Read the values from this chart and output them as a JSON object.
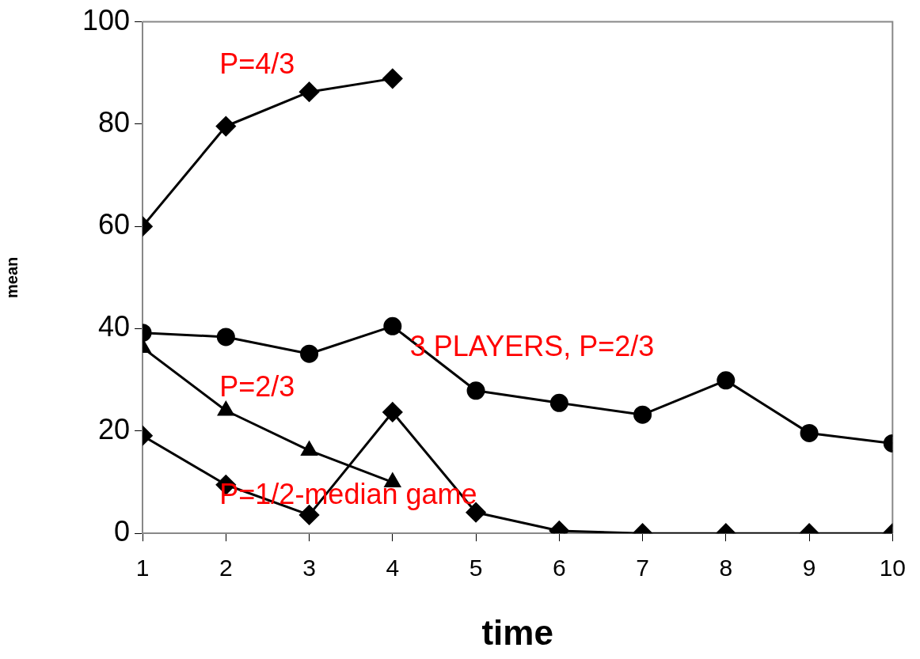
{
  "chart_data": {
    "type": "line",
    "xlabel": "time",
    "ylabel": "mean",
    "x": [
      1,
      2,
      3,
      4,
      5,
      6,
      7,
      8,
      9,
      10
    ],
    "xlim": [
      1,
      10
    ],
    "xticks": [
      1,
      2,
      3,
      4,
      5,
      6,
      7,
      8,
      9,
      10
    ],
    "ylim": [
      0,
      100
    ],
    "yticks": [
      0,
      20,
      40,
      60,
      80,
      100
    ],
    "grid": false,
    "legend": false,
    "series": [
      {
        "name": "P=4/3",
        "color": "#000000",
        "marker": "diamond",
        "values": [
          60,
          79.6,
          86.3,
          88.9,
          null,
          null,
          null,
          null,
          null,
          null
        ]
      },
      {
        "name": "3 PLAYERS, P=2/3",
        "color": "#000000",
        "marker": "circle",
        "values": [
          39.2,
          38.4,
          35.1,
          40.5,
          27.9,
          25.5,
          23.2,
          29.9,
          19.6,
          17.6
        ]
      },
      {
        "name": "P=2/3",
        "color": "#000000",
        "marker": "triangle",
        "values": [
          36.3,
          24,
          16.2,
          10,
          null,
          null,
          null,
          null,
          null,
          null
        ]
      },
      {
        "name": "P=1/2-median game",
        "color": "#000000",
        "marker": "diamond",
        "values": [
          19.1,
          9.5,
          3.6,
          23.7,
          4.1,
          0.5,
          0,
          0,
          0,
          0
        ]
      }
    ]
  }
}
